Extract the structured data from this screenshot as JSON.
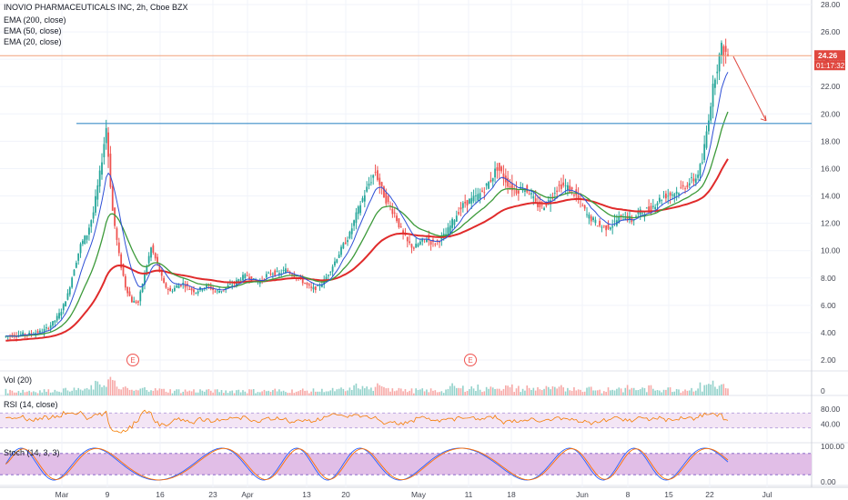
{
  "header": {
    "symbol_line": "INOVIO PHARMACEUTICALS INC, 2h, Cboe BZX",
    "studies": [
      "EMA (200, close)",
      "EMA (50, close)",
      "EMA (20, close)"
    ]
  },
  "price_badges": {
    "last_price": "24.26",
    "countdown": "01:17:32"
  },
  "earnings_marker": "E",
  "panes": {
    "volume": {
      "label": "Vol (20)",
      "axis": [
        "0"
      ]
    },
    "rsi": {
      "label": "RSI (14, close)",
      "axis": [
        "80.00",
        "40.00"
      ]
    },
    "stoch": {
      "label": "Stoch (14, 3, 3)",
      "axis": [
        "100.00",
        "0.00"
      ]
    }
  },
  "colors": {
    "ema200": "#e02b2b",
    "ema50": "#3c9a3a",
    "ema20": "#2e4fd6",
    "up": "#26a69a",
    "down": "#ef5350",
    "horizontal": "#3d8ec9",
    "lastline": "#f2a17a",
    "badge": "#e0473f",
    "rsi_band": "#f3e5f5",
    "stoch_band": "#e1bee7",
    "stoch_k": "#2962ff",
    "stoch_d": "#ff6d00",
    "rsi_line": "#f57c00"
  },
  "chart_data": {
    "type": "candlestick",
    "title": "INOVIO PHARMACEUTICALS INC, 2h, Cboe BZX",
    "price_axis": {
      "min": 2,
      "max": 28,
      "ticks": [
        "28.00",
        "26.00",
        "24.00",
        "22.00",
        "20.00",
        "18.00",
        "16.00",
        "14.00",
        "12.00",
        "10.00",
        "8.00",
        "6.00",
        "4.00",
        "2.00"
      ]
    },
    "x_ticks": [
      "Mar",
      "9",
      "16",
      "23",
      "Apr",
      "13",
      "20",
      "May",
      "11",
      "18",
      "Jun",
      "8",
      "15",
      "22",
      "Jul"
    ],
    "last_price": 24.26,
    "resistance_level": 19.3,
    "projection_arrow": {
      "from": 24.2,
      "to": 19.5
    },
    "close_path": [
      3.7,
      3.8,
      3.8,
      3.9,
      3.9,
      4.0,
      4.1,
      4.4,
      4.9,
      5.6,
      6.8,
      8.7,
      10.4,
      11.2,
      12.8,
      15.6,
      19.0,
      12.9,
      9.6,
      7.4,
      6.3,
      6.2,
      8.3,
      10.2,
      9.0,
      7.5,
      7.0,
      7.4,
      7.6,
      7.2,
      7.0,
      7.3,
      7.4,
      7.0,
      7.1,
      7.4,
      7.6,
      8.0,
      8.2,
      7.8,
      7.7,
      8.2,
      8.4,
      8.3,
      8.6,
      8.3,
      8.0,
      7.6,
      7.2,
      7.3,
      7.8,
      8.6,
      9.5,
      10.4,
      11.2,
      12.6,
      13.8,
      14.9,
      15.8,
      14.4,
      13.4,
      12.7,
      11.5,
      10.6,
      10.2,
      10.6,
      10.9,
      10.5,
      10.8,
      11.2,
      12.1,
      12.9,
      13.5,
      13.7,
      14.0,
      14.5,
      15.2,
      16.1,
      15.4,
      14.7,
      14.4,
      14.6,
      14.3,
      13.4,
      13.2,
      13.6,
      14.4,
      14.8,
      14.6,
      14.2,
      13.5,
      12.6,
      12.2,
      11.8,
      11.7,
      11.9,
      12.4,
      12.5,
      12.2,
      12.7,
      12.9,
      13.1,
      13.6,
      14.0,
      14.1,
      14.3,
      14.6,
      15.0,
      15.3,
      16.5,
      19.8,
      22.9,
      24.8,
      24.26
    ],
    "volume_axis": {
      "min": 0
    },
    "rsi_axis": {
      "min": 0,
      "max": 100,
      "band": [
        30,
        70
      ]
    },
    "stoch_axis": {
      "min": 0,
      "max": 100,
      "band": [
        20,
        80
      ]
    },
    "grid": true
  }
}
